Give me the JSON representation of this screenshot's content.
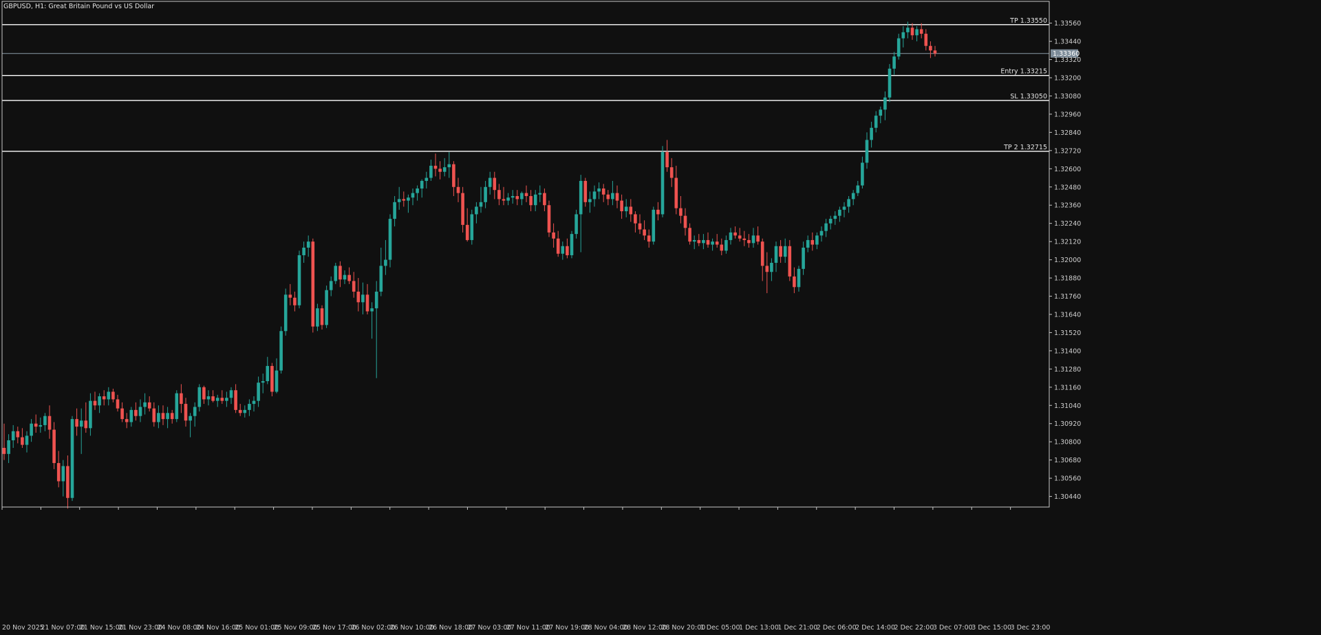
{
  "chart_title": "GBPUSD, H1:  Great Britain Pound vs US Dollar",
  "colors": {
    "background": "#101010",
    "bull": "#26a69a",
    "bear": "#ef5350",
    "level_line": "#ffffff",
    "bid_line": "#8a9ba8",
    "bid_label_bg": "#7d8c99",
    "frame": "#c8c8c8"
  },
  "chart_data": {
    "type": "candlestick",
    "symbol": "GBPUSD",
    "timeframe": "H1",
    "ylim": [
      1.3037,
      1.3364
    ],
    "price_ticks": [
      "1.33560",
      "1.33440",
      "1.33320",
      "1.33200",
      "1.33080",
      "1.32960",
      "1.32840",
      "1.32720",
      "1.32600",
      "1.32480",
      "1.32360",
      "1.32240",
      "1.32120",
      "1.32000",
      "1.31880",
      "1.31760",
      "1.31640",
      "1.31520",
      "1.31400",
      "1.31280",
      "1.31160",
      "1.31040",
      "1.30920",
      "1.30800",
      "1.30680",
      "1.30560",
      "1.30440"
    ],
    "time_labels": [
      "20 Nov 2025",
      "21 Nov 07:00",
      "21 Nov 15:00",
      "21 Nov 23:00",
      "24 Nov 08:00",
      "24 Nov 16:00",
      "25 Nov 01:00",
      "25 Nov 09:00",
      "25 Nov 17:00",
      "26 Nov 02:00",
      "26 Nov 10:00",
      "26 Nov 18:00",
      "27 Nov 03:00",
      "27 Nov 11:00",
      "27 Nov 19:00",
      "28 Nov 04:00",
      "28 Nov 12:00",
      "28 Nov 20:00",
      "1 Dec 05:00",
      "1 Dec 13:00",
      "1 Dec 21:00",
      "2 Dec 06:00",
      "2 Dec 14:00",
      "2 Dec 22:00",
      "3 Dec 07:00",
      "3 Dec 15:00",
      "3 Dec 23:00"
    ],
    "bid": "1.33360",
    "levels": [
      {
        "label": "TP 1.33550",
        "price": 1.3355
      },
      {
        "label": "Entry 1.33215",
        "price": 1.33215
      },
      {
        "label": "SL 1.33050",
        "price": 1.3305
      },
      {
        "label": "TP 2 1.32715",
        "price": 1.32715
      }
    ],
    "ohlc": [
      [
        1.3076,
        1.3092,
        1.3068,
        1.3072
      ],
      [
        1.3072,
        1.3085,
        1.3066,
        1.3081
      ],
      [
        1.3081,
        1.3091,
        1.3076,
        1.3087
      ],
      [
        1.3087,
        1.309,
        1.3079,
        1.3083
      ],
      [
        1.3083,
        1.3089,
        1.3076,
        1.3078
      ],
      [
        1.3078,
        1.3087,
        1.3073,
        1.3084
      ],
      [
        1.3084,
        1.3095,
        1.308,
        1.3092
      ],
      [
        1.3092,
        1.3098,
        1.3086,
        1.309
      ],
      [
        1.309,
        1.3096,
        1.3086,
        1.3091
      ],
      [
        1.3091,
        1.3099,
        1.3087,
        1.3097
      ],
      [
        1.3097,
        1.3104,
        1.3082,
        1.3088
      ],
      [
        1.3088,
        1.3093,
        1.3062,
        1.3066
      ],
      [
        1.3066,
        1.3074,
        1.305,
        1.3054
      ],
      [
        1.3054,
        1.3068,
        1.3044,
        1.3064
      ],
      [
        1.3064,
        1.3071,
        1.3036,
        1.3043
      ],
      [
        1.3043,
        1.3097,
        1.3041,
        1.3095
      ],
      [
        1.3095,
        1.3102,
        1.3084,
        1.309
      ],
      [
        1.309,
        1.3102,
        1.3072,
        1.3094
      ],
      [
        1.3094,
        1.3106,
        1.3086,
        1.3089
      ],
      [
        1.3089,
        1.3112,
        1.3084,
        1.3107
      ],
      [
        1.3107,
        1.3113,
        1.3101,
        1.3104
      ],
      [
        1.3104,
        1.3112,
        1.3099,
        1.311
      ],
      [
        1.311,
        1.3114,
        1.3104,
        1.3108
      ],
      [
        1.3108,
        1.3116,
        1.3104,
        1.3113
      ],
      [
        1.3113,
        1.3115,
        1.3106,
        1.3108
      ],
      [
        1.3108,
        1.3111,
        1.31,
        1.3102
      ],
      [
        1.3102,
        1.3106,
        1.3093,
        1.3095
      ],
      [
        1.3095,
        1.3099,
        1.3089,
        1.3093
      ],
      [
        1.3093,
        1.3103,
        1.309,
        1.3101
      ],
      [
        1.3101,
        1.3106,
        1.3094,
        1.3097
      ],
      [
        1.3097,
        1.3108,
        1.3093,
        1.3103
      ],
      [
        1.3103,
        1.3112,
        1.3098,
        1.3106
      ],
      [
        1.3106,
        1.311,
        1.31,
        1.3102
      ],
      [
        1.3102,
        1.3106,
        1.309,
        1.3093
      ],
      [
        1.3093,
        1.3104,
        1.3089,
        1.3099
      ],
      [
        1.3099,
        1.3104,
        1.3091,
        1.3095
      ],
      [
        1.3095,
        1.3103,
        1.3089,
        1.3099
      ],
      [
        1.3099,
        1.3101,
        1.3092,
        1.3095
      ],
      [
        1.3095,
        1.3114,
        1.3093,
        1.3112
      ],
      [
        1.3112,
        1.3118,
        1.3099,
        1.3105
      ],
      [
        1.3105,
        1.3109,
        1.309,
        1.3094
      ],
      [
        1.3094,
        1.3099,
        1.3083,
        1.3097
      ],
      [
        1.3097,
        1.3106,
        1.309,
        1.3103
      ],
      [
        1.3103,
        1.3118,
        1.31,
        1.3116
      ],
      [
        1.3116,
        1.3117,
        1.3105,
        1.3108
      ],
      [
        1.3108,
        1.3114,
        1.3104,
        1.311
      ],
      [
        1.311,
        1.3114,
        1.3106,
        1.3107
      ],
      [
        1.3107,
        1.3111,
        1.3103,
        1.3109
      ],
      [
        1.3109,
        1.3114,
        1.3105,
        1.3107
      ],
      [
        1.3107,
        1.3113,
        1.3103,
        1.3109
      ],
      [
        1.3109,
        1.3116,
        1.3105,
        1.3114
      ],
      [
        1.3114,
        1.3118,
        1.3099,
        1.3101
      ],
      [
        1.3101,
        1.3105,
        1.3097,
        1.3099
      ],
      [
        1.3099,
        1.3104,
        1.3096,
        1.3101
      ],
      [
        1.3101,
        1.3108,
        1.3097,
        1.3105
      ],
      [
        1.3105,
        1.311,
        1.31,
        1.3107
      ],
      [
        1.3107,
        1.3123,
        1.3103,
        1.3119
      ],
      [
        1.3119,
        1.3125,
        1.3112,
        1.312
      ],
      [
        1.312,
        1.3136,
        1.3118,
        1.313
      ],
      [
        1.313,
        1.3132,
        1.311,
        1.3113
      ],
      [
        1.3113,
        1.3135,
        1.3112,
        1.3127
      ],
      [
        1.3127,
        1.3156,
        1.3125,
        1.3153
      ],
      [
        1.3153,
        1.3181,
        1.315,
        1.3177
      ],
      [
        1.3177,
        1.3184,
        1.317,
        1.3175
      ],
      [
        1.3175,
        1.3179,
        1.3166,
        1.317
      ],
      [
        1.317,
        1.3206,
        1.3168,
        1.3203
      ],
      [
        1.3203,
        1.3212,
        1.3198,
        1.3208
      ],
      [
        1.3208,
        1.3216,
        1.3202,
        1.3212
      ],
      [
        1.3212,
        1.3214,
        1.3152,
        1.3156
      ],
      [
        1.3156,
        1.3171,
        1.3153,
        1.3168
      ],
      [
        1.3168,
        1.317,
        1.3154,
        1.3157
      ],
      [
        1.3157,
        1.3183,
        1.3155,
        1.318
      ],
      [
        1.318,
        1.3189,
        1.3176,
        1.3186
      ],
      [
        1.3186,
        1.3198,
        1.3184,
        1.3196
      ],
      [
        1.3196,
        1.3199,
        1.3182,
        1.3187
      ],
      [
        1.3187,
        1.3193,
        1.3184,
        1.319
      ],
      [
        1.319,
        1.3195,
        1.3184,
        1.3186
      ],
      [
        1.3186,
        1.3192,
        1.3175,
        1.3179
      ],
      [
        1.3179,
        1.3188,
        1.3166,
        1.3172
      ],
      [
        1.3172,
        1.3185,
        1.3164,
        1.3177
      ],
      [
        1.3177,
        1.3184,
        1.3164,
        1.3166
      ],
      [
        1.3166,
        1.3172,
        1.3148,
        1.3168
      ],
      [
        1.3168,
        1.3186,
        1.3122,
        1.3179
      ],
      [
        1.3179,
        1.3208,
        1.3176,
        1.3196
      ],
      [
        1.3196,
        1.3213,
        1.319,
        1.32
      ],
      [
        1.32,
        1.323,
        1.3195,
        1.3227
      ],
      [
        1.3227,
        1.3242,
        1.3222,
        1.3238
      ],
      [
        1.3238,
        1.3248,
        1.3233,
        1.324
      ],
      [
        1.324,
        1.3245,
        1.3235,
        1.3239
      ],
      [
        1.3239,
        1.3243,
        1.3231,
        1.3241
      ],
      [
        1.3241,
        1.3247,
        1.3236,
        1.3244
      ],
      [
        1.3244,
        1.3249,
        1.3239,
        1.3247
      ],
      [
        1.3247,
        1.3253,
        1.3241,
        1.3252
      ],
      [
        1.3252,
        1.3258,
        1.3247,
        1.3254
      ],
      [
        1.3254,
        1.3266,
        1.3252,
        1.3262
      ],
      [
        1.3262,
        1.327,
        1.3255,
        1.326
      ],
      [
        1.326,
        1.3265,
        1.3253,
        1.3258
      ],
      [
        1.3258,
        1.3267,
        1.3255,
        1.3261
      ],
      [
        1.3261,
        1.3271,
        1.3254,
        1.3263
      ],
      [
        1.3263,
        1.3265,
        1.3242,
        1.3248
      ],
      [
        1.3248,
        1.3254,
        1.3238,
        1.3244
      ],
      [
        1.3244,
        1.3248,
        1.3218,
        1.3223
      ],
      [
        1.3223,
        1.3234,
        1.3212,
        1.3213
      ],
      [
        1.3213,
        1.3233,
        1.321,
        1.323
      ],
      [
        1.323,
        1.3238,
        1.3224,
        1.3235
      ],
      [
        1.3235,
        1.3248,
        1.3231,
        1.3238
      ],
      [
        1.3238,
        1.3252,
        1.3234,
        1.3248
      ],
      [
        1.3248,
        1.3258,
        1.3243,
        1.3254
      ],
      [
        1.3254,
        1.3258,
        1.324,
        1.3246
      ],
      [
        1.3246,
        1.325,
        1.3236,
        1.324
      ],
      [
        1.324,
        1.3248,
        1.3236,
        1.3239
      ],
      [
        1.3239,
        1.3244,
        1.3236,
        1.3241
      ],
      [
        1.3241,
        1.3246,
        1.3237,
        1.3242
      ],
      [
        1.3242,
        1.3246,
        1.3236,
        1.324
      ],
      [
        1.324,
        1.3245,
        1.3236,
        1.3244
      ],
      [
        1.3244,
        1.3249,
        1.3238,
        1.3242
      ],
      [
        1.3242,
        1.3246,
        1.3232,
        1.3236
      ],
      [
        1.3236,
        1.3246,
        1.3232,
        1.3243
      ],
      [
        1.3243,
        1.3249,
        1.3238,
        1.3244
      ],
      [
        1.3244,
        1.3247,
        1.3232,
        1.3236
      ],
      [
        1.3236,
        1.3239,
        1.3215,
        1.3218
      ],
      [
        1.3218,
        1.3224,
        1.3208,
        1.3214
      ],
      [
        1.3214,
        1.3219,
        1.3202,
        1.3204
      ],
      [
        1.3204,
        1.3212,
        1.32,
        1.3209
      ],
      [
        1.3209,
        1.3214,
        1.3201,
        1.3203
      ],
      [
        1.3203,
        1.3219,
        1.3201,
        1.3217
      ],
      [
        1.3217,
        1.3233,
        1.3214,
        1.323
      ],
      [
        1.323,
        1.3256,
        1.3205,
        1.3252
      ],
      [
        1.3252,
        1.3254,
        1.3235,
        1.3238
      ],
      [
        1.3238,
        1.3245,
        1.3231,
        1.324
      ],
      [
        1.324,
        1.3249,
        1.3235,
        1.3245
      ],
      [
        1.3245,
        1.3251,
        1.324,
        1.3247
      ],
      [
        1.3247,
        1.325,
        1.3238,
        1.3243
      ],
      [
        1.3243,
        1.3246,
        1.3236,
        1.324
      ],
      [
        1.324,
        1.3252,
        1.3236,
        1.3244
      ],
      [
        1.3244,
        1.3249,
        1.3234,
        1.3239
      ],
      [
        1.3239,
        1.3243,
        1.3227,
        1.3232
      ],
      [
        1.3232,
        1.324,
        1.3228,
        1.3235
      ],
      [
        1.3235,
        1.324,
        1.3225,
        1.323
      ],
      [
        1.323,
        1.3232,
        1.3218,
        1.3224
      ],
      [
        1.3224,
        1.323,
        1.3217,
        1.322
      ],
      [
        1.322,
        1.3226,
        1.3213,
        1.3216
      ],
      [
        1.3216,
        1.322,
        1.3208,
        1.3212
      ],
      [
        1.3212,
        1.3235,
        1.321,
        1.3233
      ],
      [
        1.3233,
        1.3238,
        1.3226,
        1.323
      ],
      [
        1.323,
        1.3275,
        1.3228,
        1.3271
      ],
      [
        1.3271,
        1.3279,
        1.3258,
        1.3261
      ],
      [
        1.3261,
        1.3267,
        1.3248,
        1.3254
      ],
      [
        1.3254,
        1.3262,
        1.323,
        1.3234
      ],
      [
        1.3234,
        1.3242,
        1.3224,
        1.3229
      ],
      [
        1.3229,
        1.3234,
        1.3216,
        1.3221
      ],
      [
        1.3221,
        1.3224,
        1.321,
        1.3212
      ],
      [
        1.3212,
        1.3216,
        1.3207,
        1.3213
      ],
      [
        1.3213,
        1.3217,
        1.3209,
        1.3211
      ],
      [
        1.3211,
        1.3217,
        1.3207,
        1.3213
      ],
      [
        1.3213,
        1.3218,
        1.3208,
        1.321
      ],
      [
        1.321,
        1.3214,
        1.3206,
        1.3212
      ],
      [
        1.3212,
        1.3217,
        1.3208,
        1.321
      ],
      [
        1.321,
        1.3214,
        1.3203,
        1.3206
      ],
      [
        1.3206,
        1.3216,
        1.3204,
        1.3213
      ],
      [
        1.3213,
        1.3221,
        1.321,
        1.3218
      ],
      [
        1.3218,
        1.3222,
        1.3214,
        1.3216
      ],
      [
        1.3216,
        1.3221,
        1.3212,
        1.3214
      ],
      [
        1.3214,
        1.3219,
        1.3209,
        1.3213
      ],
      [
        1.3213,
        1.3217,
        1.3208,
        1.3211
      ],
      [
        1.3211,
        1.3221,
        1.3208,
        1.3216
      ],
      [
        1.3216,
        1.3222,
        1.321,
        1.3212
      ],
      [
        1.3212,
        1.3214,
        1.3186,
        1.3196
      ],
      [
        1.3196,
        1.3205,
        1.3178,
        1.3192
      ],
      [
        1.3192,
        1.3201,
        1.3186,
        1.3198
      ],
      [
        1.3198,
        1.3212,
        1.3192,
        1.3209
      ],
      [
        1.3209,
        1.3213,
        1.3198,
        1.3202
      ],
      [
        1.3202,
        1.3214,
        1.3198,
        1.3209
      ],
      [
        1.3209,
        1.3213,
        1.3186,
        1.3189
      ],
      [
        1.3189,
        1.3195,
        1.3178,
        1.3182
      ],
      [
        1.3182,
        1.3196,
        1.3179,
        1.3194
      ],
      [
        1.3194,
        1.3212,
        1.319,
        1.3208
      ],
      [
        1.3208,
        1.3216,
        1.3205,
        1.3213
      ],
      [
        1.3213,
        1.3218,
        1.3206,
        1.321
      ],
      [
        1.321,
        1.3218,
        1.3207,
        1.3216
      ],
      [
        1.3216,
        1.3222,
        1.3212,
        1.3219
      ],
      [
        1.3219,
        1.3227,
        1.3215,
        1.3224
      ],
      [
        1.3224,
        1.3229,
        1.322,
        1.3227
      ],
      [
        1.3227,
        1.3232,
        1.3223,
        1.3229
      ],
      [
        1.3229,
        1.3235,
        1.3225,
        1.3233
      ],
      [
        1.3233,
        1.3238,
        1.3228,
        1.3235
      ],
      [
        1.3235,
        1.3242,
        1.3231,
        1.324
      ],
      [
        1.324,
        1.3246,
        1.3236,
        1.3244
      ],
      [
        1.3244,
        1.3252,
        1.3242,
        1.3249
      ],
      [
        1.3249,
        1.3268,
        1.3247,
        1.3264
      ],
      [
        1.3264,
        1.3284,
        1.326,
        1.3279
      ],
      [
        1.3279,
        1.3291,
        1.3274,
        1.3287
      ],
      [
        1.3287,
        1.3298,
        1.3284,
        1.3295
      ],
      [
        1.3295,
        1.3301,
        1.329,
        1.3299
      ],
      [
        1.3299,
        1.3311,
        1.3292,
        1.3307
      ],
      [
        1.3307,
        1.3329,
        1.3304,
        1.3326
      ],
      [
        1.3326,
        1.3337,
        1.3322,
        1.3334
      ],
      [
        1.3334,
        1.3349,
        1.3332,
        1.3346
      ],
      [
        1.3346,
        1.3354,
        1.334,
        1.335
      ],
      [
        1.335,
        1.3357,
        1.3346,
        1.3353
      ],
      [
        1.3353,
        1.3356,
        1.3345,
        1.3348
      ],
      [
        1.3348,
        1.3354,
        1.3344,
        1.3352
      ],
      [
        1.3352,
        1.3356,
        1.3346,
        1.3349
      ],
      [
        1.3349,
        1.3352,
        1.3338,
        1.3341
      ],
      [
        1.3341,
        1.3344,
        1.3333,
        1.3338
      ],
      [
        1.3338,
        1.3341,
        1.3334,
        1.3336
      ]
    ]
  }
}
